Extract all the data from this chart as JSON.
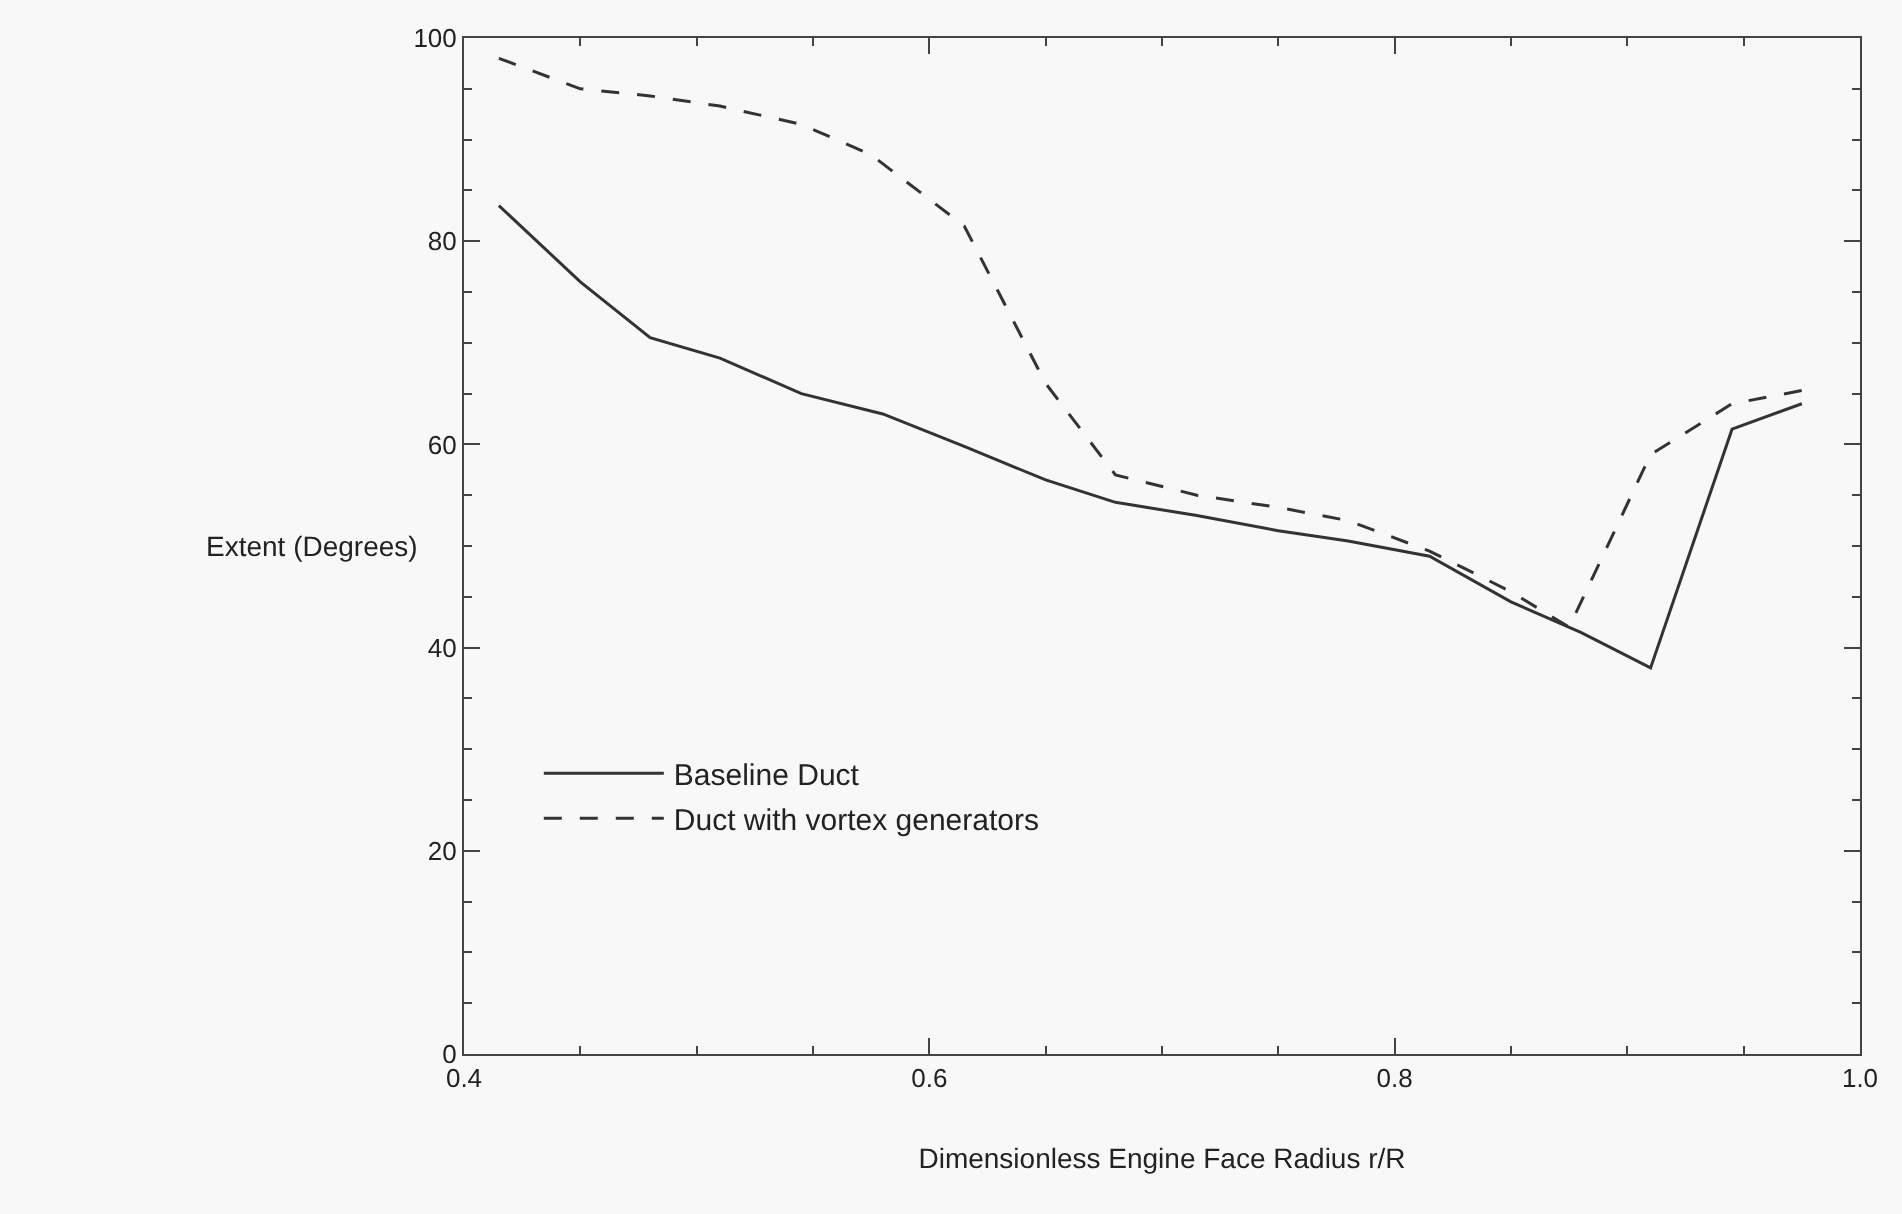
{
  "chart_data": {
    "type": "line",
    "xlabel": "Dimensionless Engine Face Radius r/R",
    "ylabel": "Extent (Degrees)",
    "xlim": [
      0.4,
      1.0
    ],
    "xticks": [
      0.4,
      0.6,
      0.8,
      {
        "value": 1.0,
        "label": "1.0"
      }
    ],
    "ylim": [
      0,
      100
    ],
    "yticks": [
      0,
      20,
      40,
      60,
      80,
      100
    ],
    "grid": false,
    "legend": "bottom left",
    "marker": "none",
    "series": [
      {
        "name": "Baseline Duct",
        "color": "#333333",
        "line_style": "solid",
        "x": [
          0.415,
          0.45,
          0.48,
          0.51,
          0.545,
          0.58,
          0.615,
          0.65,
          0.68,
          0.715,
          0.75,
          0.78,
          0.815,
          0.85,
          0.88,
          0.91,
          0.945,
          0.975
        ],
        "values": [
          83.5,
          76,
          70.5,
          68.5,
          65,
          63,
          59.8,
          56.5,
          54.3,
          53,
          51.5,
          50.5,
          49,
          44.5,
          41.5,
          38,
          61.5,
          64
        ]
      },
      {
        "name": "Duct with vortex generators",
        "color": "#333333",
        "line_style": "dashed",
        "x": [
          0.415,
          0.45,
          0.48,
          0.51,
          0.545,
          0.575,
          0.615,
          0.65,
          0.68,
          0.715,
          0.75,
          0.78,
          0.815,
          0.85,
          0.875,
          0.91,
          0.945,
          0.975
        ],
        "values": [
          98,
          95,
          94.3,
          93.3,
          91.5,
          88.5,
          81.5,
          66,
          57,
          55,
          53.8,
          52.5,
          49.5,
          45.5,
          42,
          59,
          64,
          65.3
        ]
      }
    ]
  }
}
